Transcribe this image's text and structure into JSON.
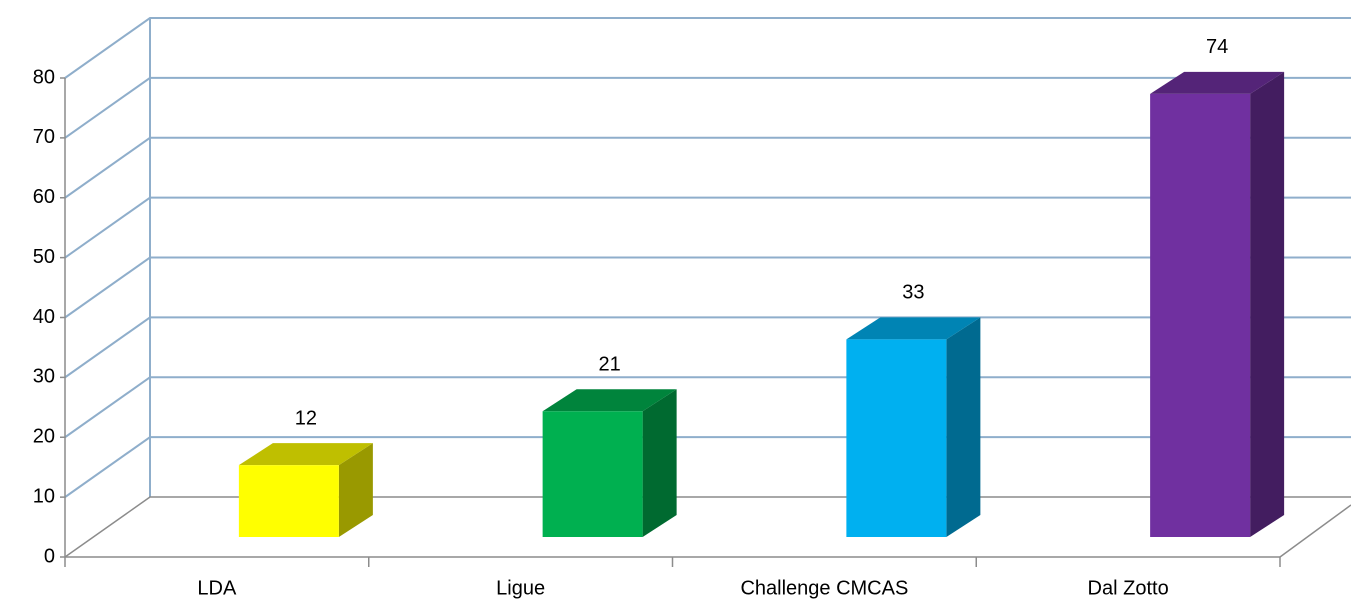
{
  "chart_data": {
    "type": "bar3d",
    "categories": [
      "LDA",
      "Ligue",
      "Challenge CMCAS",
      "Dal Zotto"
    ],
    "values": [
      12,
      21,
      33,
      74
    ],
    "colors": [
      "#ffff00",
      "#00b050",
      "#00b0f0",
      "#7030a0"
    ],
    "ylim": [
      0,
      80
    ],
    "yticks": [
      0,
      10,
      20,
      30,
      40,
      50,
      60,
      70,
      80
    ],
    "grid": true
  }
}
